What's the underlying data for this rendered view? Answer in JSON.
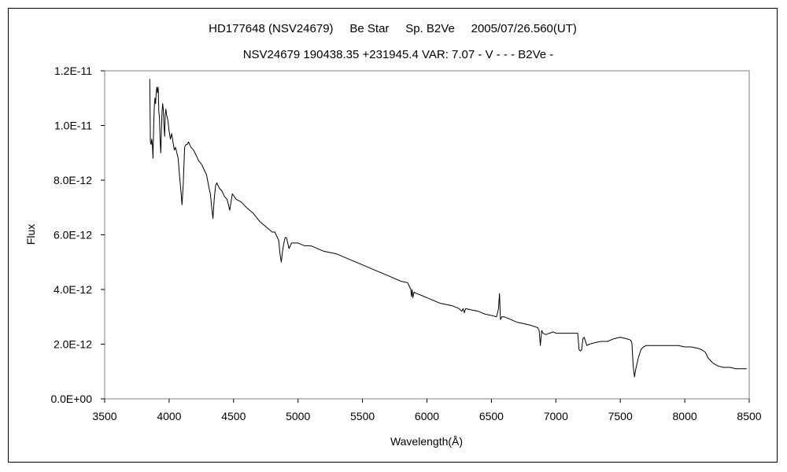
{
  "chart_data": {
    "type": "line",
    "title": "HD177648 (NSV24679)     Be Star     Sp. B2Ve     2005/07/26.560(UT)",
    "subtitle": "NSV24679 190438.35 +231945.4 VAR: 7.07 - V - - - B2Ve -",
    "xlabel": "Wavelength(Å)",
    "ylabel": "Flux",
    "xlim": [
      3500,
      8500
    ],
    "ylim": [
      0,
      1.2e-11
    ],
    "x_ticks": [
      3500,
      4000,
      4500,
      5000,
      5500,
      6000,
      6500,
      7000,
      7500,
      8000,
      8500
    ],
    "x_tick_labels": [
      "3500",
      "4000",
      "4500",
      "5000",
      "5500",
      "6000",
      "6500",
      "7000",
      "7500",
      "8000",
      "8500"
    ],
    "y_ticks": [
      0,
      2e-12,
      4e-12,
      6e-12,
      8e-12,
      1e-11,
      1.2e-11
    ],
    "y_tick_labels": [
      "0.0E+00",
      "2.0E-12",
      "4.0E-12",
      "6.0E-12",
      "8.0E-12",
      "1.0E-11",
      "1.2E-11"
    ],
    "grid": false,
    "series": [
      {
        "color": "#000000",
        "x": [
          3850,
          3855,
          3860,
          3865,
          3870,
          3875,
          3880,
          3885,
          3890,
          3895,
          3900,
          3905,
          3910,
          3915,
          3920,
          3925,
          3930,
          3935,
          3940,
          3945,
          3950,
          3955,
          3960,
          3965,
          3970,
          3975,
          3980,
          3990,
          4000,
          4010,
          4020,
          4030,
          4040,
          4050,
          4060,
          4070,
          4080,
          4090,
          4100,
          4110,
          4120,
          4130,
          4140,
          4150,
          4170,
          4190,
          4210,
          4230,
          4250,
          4270,
          4290,
          4310,
          4320,
          4330,
          4340,
          4350,
          4360,
          4370,
          4390,
          4410,
          4430,
          4450,
          4470,
          4490,
          4520,
          4560,
          4600,
          4650,
          4700,
          4750,
          4800,
          4820,
          4840,
          4850,
          4860,
          4870,
          4880,
          4890,
          4900,
          4910,
          4920,
          4930,
          4950,
          5000,
          5050,
          5100,
          5150,
          5200,
          5300,
          5400,
          5500,
          5600,
          5700,
          5800,
          5850,
          5875,
          5880,
          5885,
          5890,
          5895,
          5900,
          5920,
          5950,
          6000,
          6100,
          6200,
          6250,
          6270,
          6280,
          6290,
          6300,
          6350,
          6400,
          6450,
          6500,
          6540,
          6555,
          6563,
          6570,
          6580,
          6600,
          6650,
          6700,
          6750,
          6800,
          6860,
          6870,
          6880,
          6890,
          6900,
          6920,
          6950,
          6980,
          7000,
          7050,
          7100,
          7150,
          7170,
          7180,
          7190,
          7200,
          7210,
          7220,
          7240,
          7260,
          7300,
          7350,
          7400,
          7450,
          7500,
          7550,
          7580,
          7590,
          7600,
          7610,
          7620,
          7640,
          7660,
          7680,
          7700,
          7750,
          7800,
          7850,
          7900,
          7950,
          8000,
          8050,
          8100,
          8130,
          8160,
          8180,
          8200,
          8220,
          8260,
          8300,
          8350,
          8400,
          8450,
          8480
        ],
        "values": [
          1.17e-11,
          9.4e-12,
          9.3e-12,
          9.5e-12,
          9.3e-12,
          8.8e-12,
          9.9e-12,
          1.07e-11,
          1.1e-11,
          1.08e-11,
          1.12e-11,
          1.14e-11,
          1.12e-11,
          1.14e-11,
          1.05e-11,
          1.03e-11,
          9.5e-12,
          9e-12,
          9.8e-12,
          1.05e-11,
          1.08e-11,
          1.06e-11,
          1e-11,
          9.6e-12,
          1.04e-11,
          1.06e-11,
          1.04e-11,
          1.02e-11,
          9.8e-12,
          9.5e-12,
          9.7e-12,
          9.4e-12,
          9.1e-12,
          9.2e-12,
          9e-12,
          8.8e-12,
          8.2e-12,
          7.7e-12,
          7.1e-12,
          7.9e-12,
          9.2e-12,
          9.3e-12,
          9.3e-12,
          9.4e-12,
          9.2e-12,
          9.1e-12,
          8.9e-12,
          8.7e-12,
          8.6e-12,
          8.4e-12,
          8.2e-12,
          7.7e-12,
          7.5e-12,
          7e-12,
          6.6e-12,
          7.3e-12,
          7.8e-12,
          7.9e-12,
          7.7e-12,
          7.6e-12,
          7.4e-12,
          7.3e-12,
          6.9e-12,
          7.5e-12,
          7.3e-12,
          7.2e-12,
          7e-12,
          6.8e-12,
          6.5e-12,
          6.3e-12,
          6.1e-12,
          6.1e-12,
          5.9e-12,
          5.8e-12,
          5.3e-12,
          5e-12,
          5.4e-12,
          5.7e-12,
          5.9e-12,
          5.9e-12,
          5.7e-12,
          5.5e-12,
          5.7e-12,
          5.7e-12,
          5.6e-12,
          5.6e-12,
          5.5e-12,
          5.4e-12,
          5.3e-12,
          5.1e-12,
          4.9e-12,
          4.7e-12,
          4.5e-12,
          4.3e-12,
          4.25e-12,
          4e-12,
          3.75e-12,
          4e-12,
          3.7e-12,
          3.8e-12,
          3.9e-12,
          3.85e-12,
          3.8e-12,
          3.7e-12,
          3.5e-12,
          3.4e-12,
          3.3e-12,
          3.2e-12,
          3.3e-12,
          3.15e-12,
          3.3e-12,
          3.25e-12,
          3.2e-12,
          3.1e-12,
          3.05e-12,
          3e-12,
          3.3e-12,
          3.85e-12,
          2.9e-12,
          3e-12,
          3e-12,
          2.9e-12,
          2.8e-12,
          2.75e-12,
          2.7e-12,
          2.6e-12,
          2.5e-12,
          1.95e-12,
          2.5e-12,
          2.4e-12,
          2.35e-12,
          2.4e-12,
          2.45e-12,
          2.4e-12,
          2.4e-12,
          2.4e-12,
          2.4e-12,
          2.4e-12,
          1.8e-12,
          1.75e-12,
          1.8e-12,
          2.2e-12,
          2.25e-12,
          1.95e-12,
          2e-12,
          2.05e-12,
          2.1e-12,
          2.1e-12,
          2.2e-12,
          2.25e-12,
          2.2e-12,
          2.15e-12,
          2.05e-12,
          1.2e-12,
          8e-13,
          1.1e-12,
          1.5e-12,
          1.8e-12,
          1.9e-12,
          1.95e-12,
          1.95e-12,
          1.95e-12,
          1.95e-12,
          1.95e-12,
          1.95e-12,
          1.9e-12,
          1.9e-12,
          1.85e-12,
          1.8e-12,
          1.7e-12,
          1.5e-12,
          1.4e-12,
          1.3e-12,
          1.2e-12,
          1.15e-12,
          1.15e-12,
          1.1e-12,
          1.1e-12,
          1.1e-12
        ]
      }
    ]
  }
}
